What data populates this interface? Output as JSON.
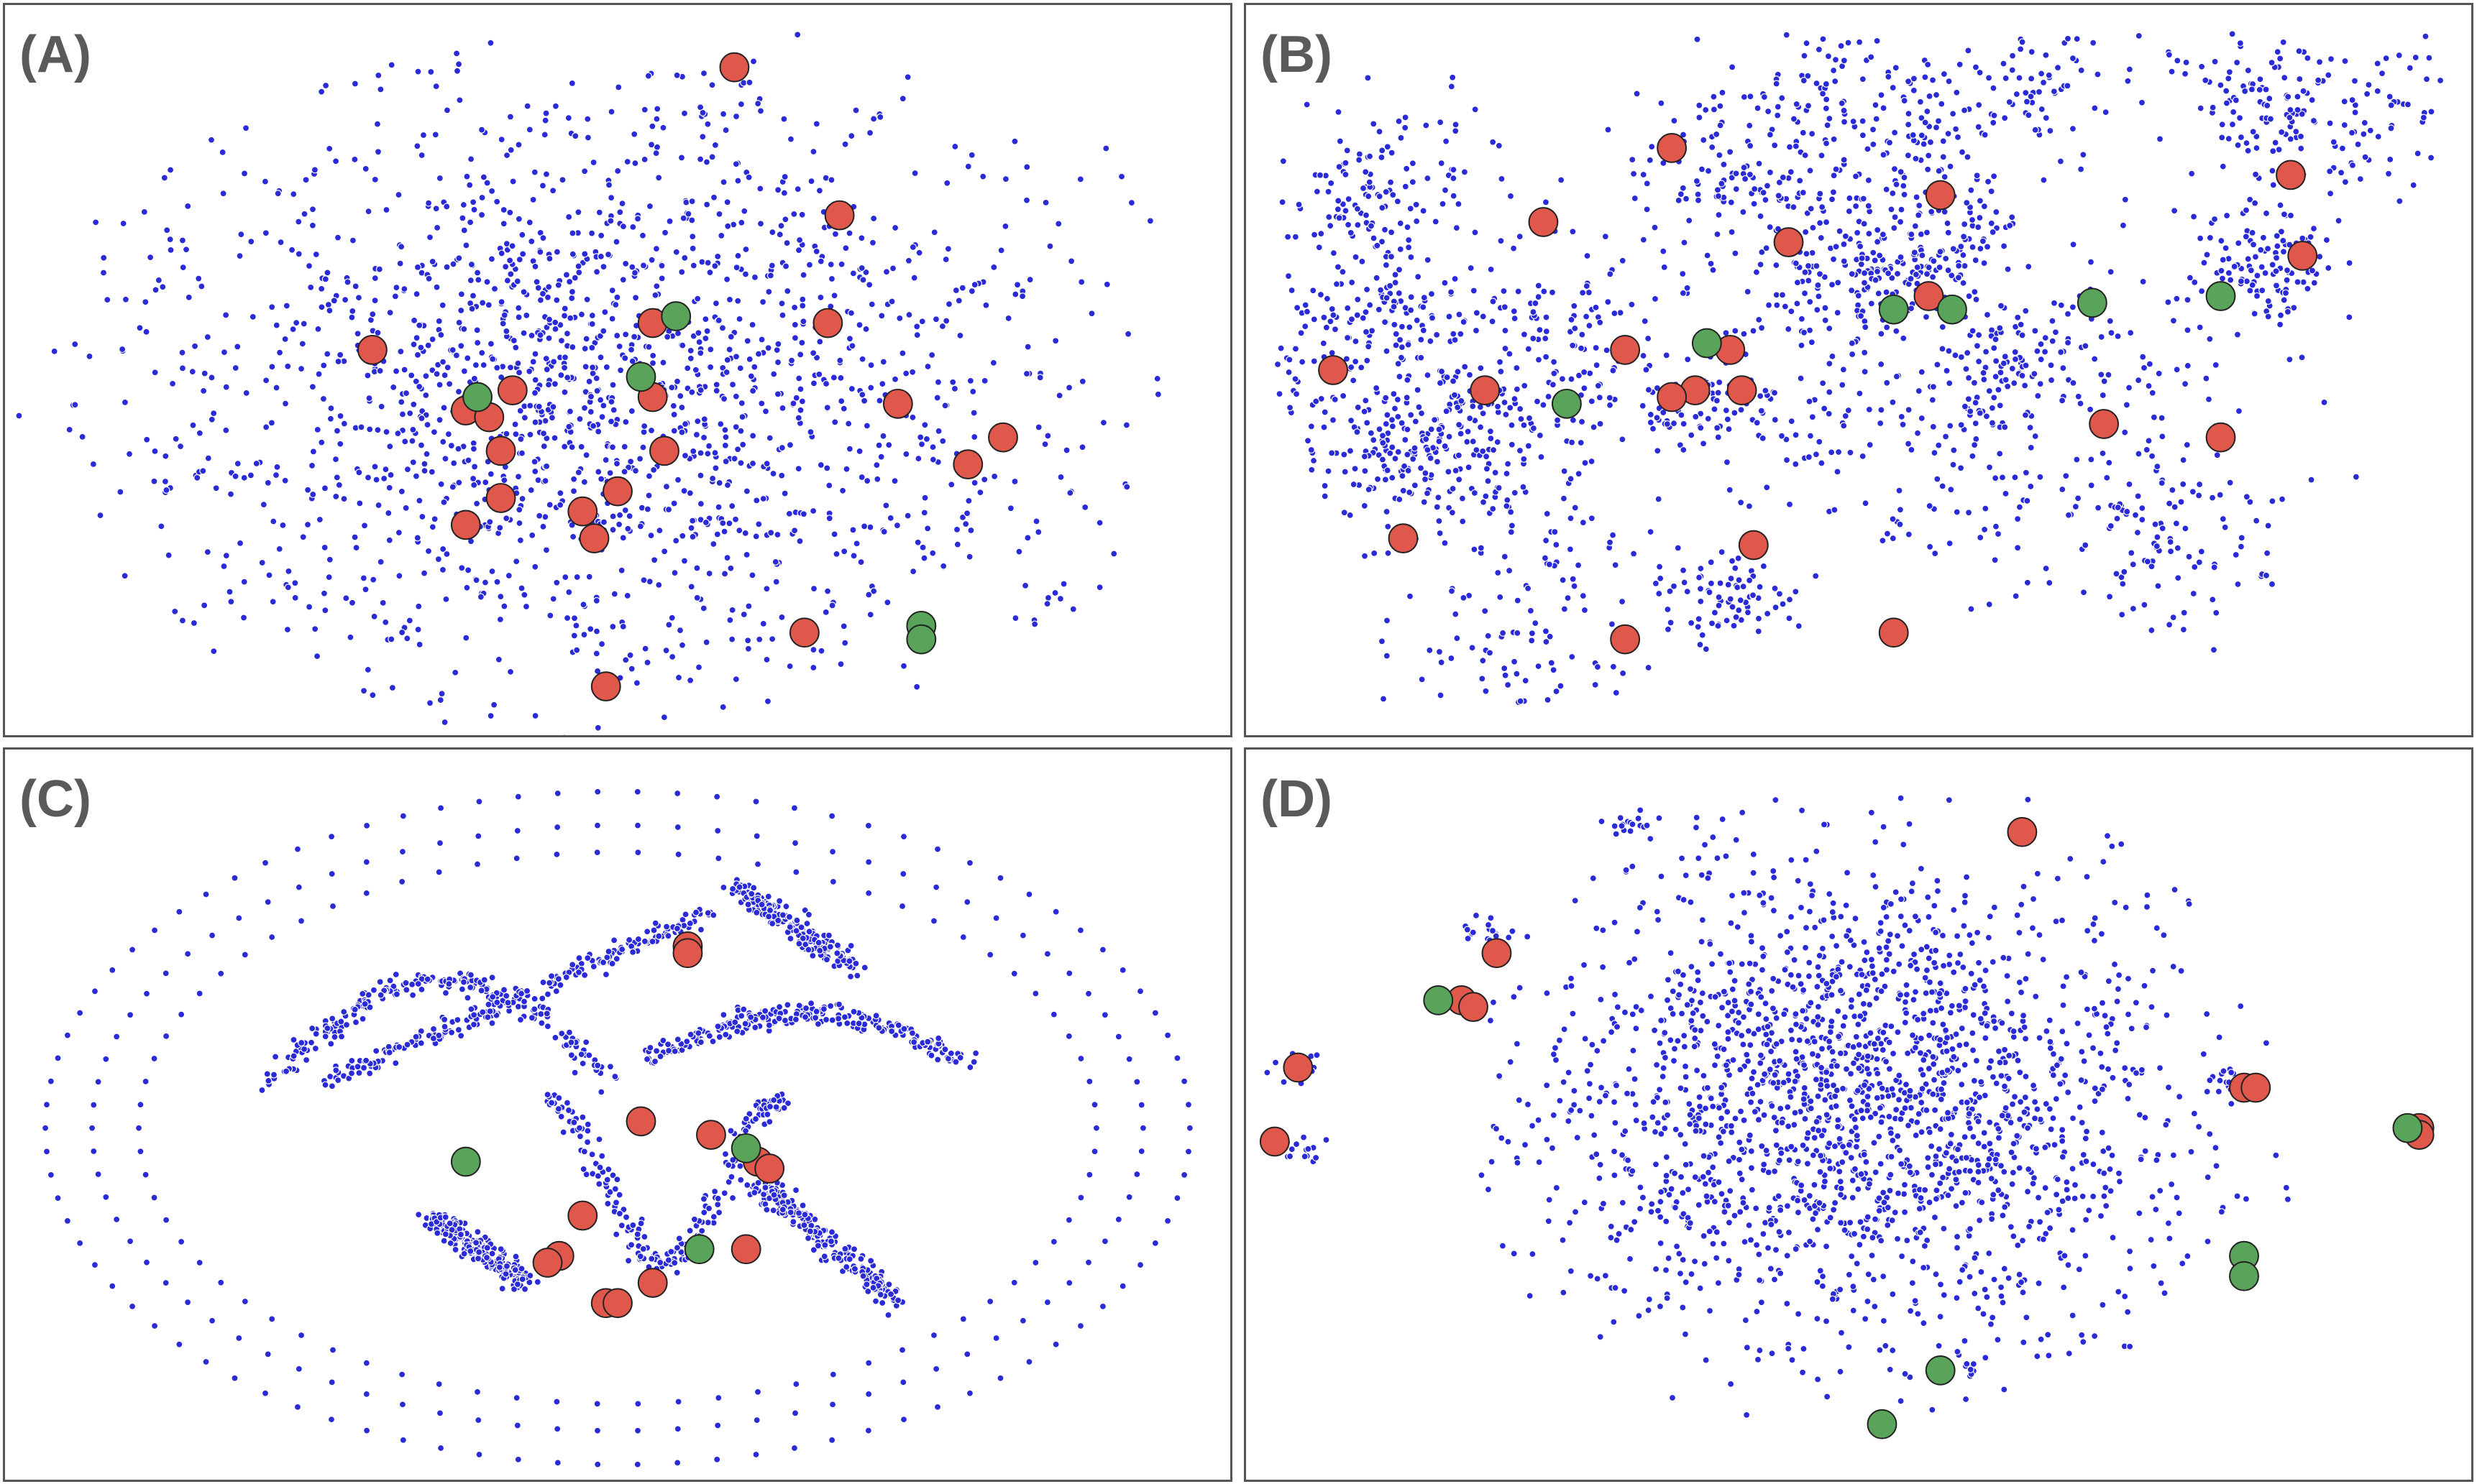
{
  "colors": {
    "embedding_points": "#2a2ad6",
    "red_markers": "#e0574c",
    "green_markers": "#5aa35a",
    "panel_border": "#555555",
    "label_text": "#5a5a5a"
  },
  "chart_data": [
    {
      "label": "(A)",
      "type": "scatter",
      "title": "",
      "xlabel": "",
      "ylabel": "",
      "grid": false,
      "legend": "none",
      "layout": "diffuse-ellipse",
      "background_point_count": 1800,
      "red": [
        [
          0.6,
          0.95
        ],
        [
          0.69,
          0.73
        ],
        [
          0.53,
          0.57
        ],
        [
          0.68,
          0.57
        ],
        [
          0.29,
          0.53
        ],
        [
          0.41,
          0.47
        ],
        [
          0.37,
          0.44
        ],
        [
          0.39,
          0.43
        ],
        [
          0.53,
          0.46
        ],
        [
          0.74,
          0.45
        ],
        [
          0.83,
          0.4
        ],
        [
          0.8,
          0.36
        ],
        [
          0.4,
          0.38
        ],
        [
          0.54,
          0.38
        ],
        [
          0.5,
          0.32
        ],
        [
          0.47,
          0.29
        ],
        [
          0.4,
          0.31
        ],
        [
          0.37,
          0.27
        ],
        [
          0.48,
          0.25
        ],
        [
          0.66,
          0.11
        ],
        [
          0.49,
          0.03
        ]
      ],
      "green": [
        [
          0.55,
          0.58
        ],
        [
          0.52,
          0.49
        ],
        [
          0.38,
          0.46
        ],
        [
          0.76,
          0.12
        ],
        [
          0.76,
          0.1
        ]
      ]
    },
    {
      "label": "(B)",
      "type": "scatter",
      "title": "",
      "xlabel": "",
      "ylabel": "",
      "grid": false,
      "legend": "none",
      "layout": "clustered-islands",
      "background_point_count": 2400,
      "red": [
        [
          0.34,
          0.83
        ],
        [
          0.57,
          0.76
        ],
        [
          0.87,
          0.79
        ],
        [
          0.23,
          0.72
        ],
        [
          0.44,
          0.69
        ],
        [
          0.88,
          0.67
        ],
        [
          0.56,
          0.61
        ],
        [
          0.3,
          0.53
        ],
        [
          0.39,
          0.53
        ],
        [
          0.4,
          0.47
        ],
        [
          0.18,
          0.47
        ],
        [
          0.05,
          0.5
        ],
        [
          0.36,
          0.47
        ],
        [
          0.34,
          0.46
        ],
        [
          0.71,
          0.42
        ],
        [
          0.81,
          0.4
        ],
        [
          0.11,
          0.25
        ],
        [
          0.41,
          0.24
        ],
        [
          0.3,
          0.1
        ],
        [
          0.53,
          0.11
        ]
      ],
      "green": [
        [
          0.53,
          0.59
        ],
        [
          0.58,
          0.59
        ],
        [
          0.7,
          0.6
        ],
        [
          0.81,
          0.61
        ],
        [
          0.37,
          0.54
        ],
        [
          0.25,
          0.45
        ]
      ]
    },
    {
      "label": "(C)",
      "type": "scatter",
      "title": "",
      "xlabel": "",
      "ylabel": "",
      "grid": false,
      "legend": "none",
      "layout": "curves-and-rings",
      "background_point_count": 1600,
      "red": [
        [
          0.56,
          0.75
        ],
        [
          0.56,
          0.74
        ],
        [
          0.52,
          0.49
        ],
        [
          0.58,
          0.47
        ],
        [
          0.62,
          0.43
        ],
        [
          0.63,
          0.42
        ],
        [
          0.47,
          0.35
        ],
        [
          0.61,
          0.3
        ],
        [
          0.45,
          0.29
        ],
        [
          0.44,
          0.28
        ],
        [
          0.53,
          0.25
        ],
        [
          0.49,
          0.22
        ],
        [
          0.5,
          0.22
        ]
      ],
      "green": [
        [
          0.37,
          0.43
        ],
        [
          0.61,
          0.45
        ],
        [
          0.57,
          0.3
        ]
      ]
    },
    {
      "label": "(D)",
      "type": "scatter",
      "title": "",
      "xlabel": "",
      "ylabel": "",
      "grid": false,
      "legend": "none",
      "layout": "central-blob-outliers",
      "background_point_count": 2000,
      "red": [
        [
          0.64,
          0.92
        ],
        [
          0.19,
          0.74
        ],
        [
          0.16,
          0.67
        ],
        [
          0.17,
          0.66
        ],
        [
          0.02,
          0.57
        ],
        [
          0.0,
          0.46
        ],
        [
          0.83,
          0.54
        ],
        [
          0.84,
          0.54
        ],
        [
          0.98,
          0.48
        ],
        [
          0.98,
          0.47
        ]
      ],
      "green": [
        [
          0.14,
          0.67
        ],
        [
          0.97,
          0.48
        ],
        [
          0.83,
          0.29
        ],
        [
          0.83,
          0.26
        ],
        [
          0.57,
          0.12
        ],
        [
          0.52,
          0.04
        ]
      ]
    }
  ]
}
